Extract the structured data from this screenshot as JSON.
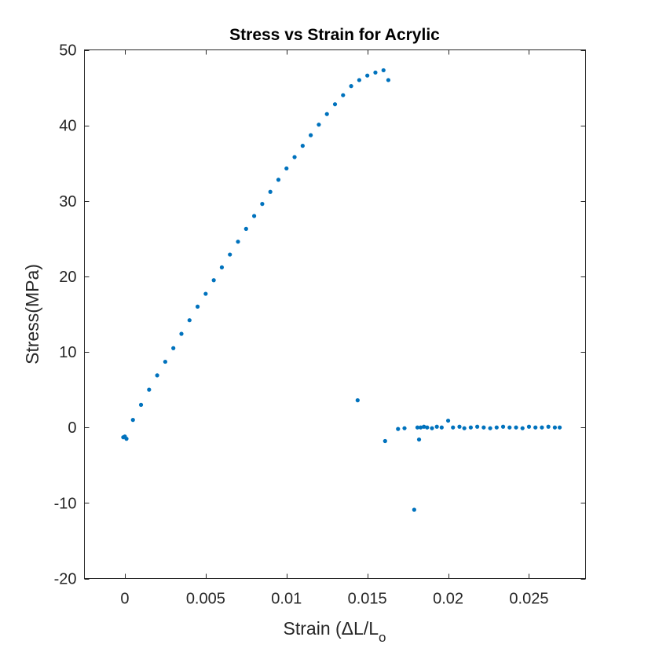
{
  "chart_data": {
    "type": "scatter",
    "title": "Stress vs Strain for Acrylic",
    "xlabel": "Strain (ΔL/L",
    "xlabel_subscript": "o",
    "ylabel": "Stress(MPa)",
    "xlim": [
      -0.0025,
      0.0285
    ],
    "ylim": [
      -20,
      50
    ],
    "xticks": [
      0,
      0.005,
      0.01,
      0.015,
      0.02,
      0.025
    ],
    "xtick_labels": [
      "0",
      "0.005",
      "0.01",
      "0.015",
      "0.02",
      "0.025"
    ],
    "yticks": [
      -20,
      -10,
      0,
      10,
      20,
      30,
      40,
      50
    ],
    "ytick_labels": [
      "-20",
      "-10",
      "0",
      "10",
      "20",
      "30",
      "40",
      "50"
    ],
    "grid": false,
    "marker_color": "#0072BD",
    "series": [
      {
        "role": "elastic-loading",
        "x": [
          0.0,
          0.0005,
          0.001,
          0.0015,
          0.002,
          0.0025,
          0.003,
          0.0035,
          0.004,
          0.0045,
          0.005,
          0.0055,
          0.006,
          0.0065,
          0.007,
          0.0075,
          0.008,
          0.0085,
          0.009,
          0.0095,
          0.01,
          0.0105,
          0.011,
          0.0115,
          0.012,
          0.0125,
          0.013,
          0.0135,
          0.014,
          0.0145,
          0.015,
          0.0155,
          0.016,
          0.0163
        ],
        "y": [
          -1.2,
          1.0,
          3.0,
          5.0,
          6.9,
          8.7,
          10.5,
          12.4,
          14.2,
          16.0,
          17.7,
          19.5,
          21.2,
          22.9,
          24.6,
          26.3,
          28.0,
          29.6,
          31.2,
          32.8,
          34.3,
          35.8,
          37.3,
          38.7,
          40.1,
          41.5,
          42.8,
          44.0,
          45.2,
          46.0,
          46.6,
          47.0,
          47.3,
          46.0
        ]
      },
      {
        "role": "post-fracture",
        "x": [
          -0.0001,
          0.0001,
          0.0144,
          0.0161,
          0.0169,
          0.0173,
          0.0179,
          0.0181,
          0.0182,
          0.0183,
          0.0185,
          0.0187,
          0.019,
          0.0193,
          0.0196,
          0.02,
          0.0203,
          0.0207,
          0.021,
          0.0214,
          0.0218,
          0.0222,
          0.0226,
          0.023,
          0.0234,
          0.0238,
          0.0242,
          0.0246,
          0.025,
          0.0254,
          0.0258,
          0.0262,
          0.0266,
          0.0269
        ],
        "y": [
          -1.3,
          -1.5,
          3.6,
          -1.8,
          -0.2,
          -0.1,
          -10.9,
          0.0,
          -1.6,
          0.0,
          0.1,
          0.0,
          -0.1,
          0.1,
          0.0,
          0.9,
          0.0,
          0.1,
          -0.1,
          0.0,
          0.1,
          0.0,
          -0.1,
          0.0,
          0.1,
          0.0,
          0.0,
          -0.1,
          0.1,
          0.0,
          0.0,
          0.1,
          0.0,
          0.0
        ]
      }
    ]
  }
}
